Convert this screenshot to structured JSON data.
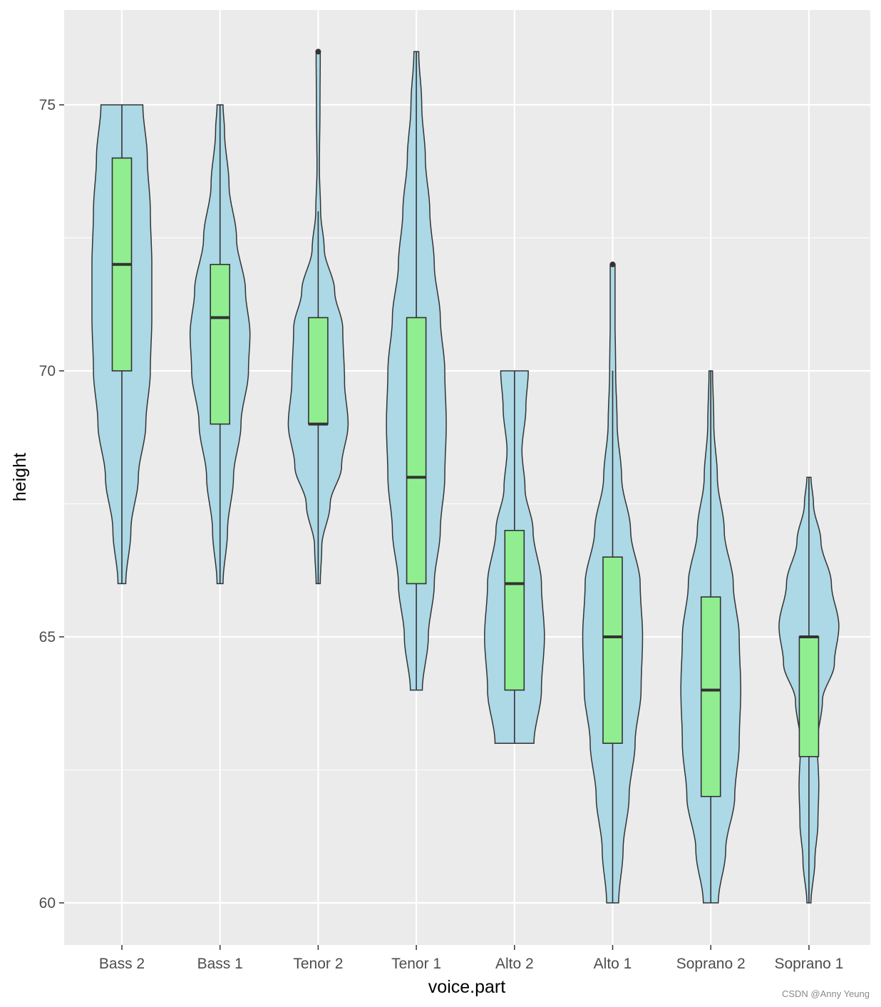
{
  "chart_data": {
    "type": "violin",
    "overlay": "boxplot",
    "title": "",
    "xlabel": "voice.part",
    "ylabel": "height",
    "ylim": [
      59.25,
      76.8
    ],
    "y_ticks": [
      60,
      65,
      70,
      75
    ],
    "y_tick_labels": [
      "60",
      "65",
      "70",
      "75"
    ],
    "grid": true,
    "colors": {
      "panel_bg": "#ebebeb",
      "grid": "#ffffff",
      "violin_fill": "#add8e6",
      "box_fill": "#90ee90",
      "outline": "#333333"
    },
    "categories": [
      "Bass 2",
      "Bass 1",
      "Tenor 2",
      "Tenor 1",
      "Alto 2",
      "Alto 1",
      "Soprano 2",
      "Soprano 1"
    ],
    "groups": [
      {
        "name": "Bass 2",
        "min": 66,
        "max": 75,
        "box": {
          "q1": 70,
          "median": 72,
          "q3": 74,
          "whisker_low": 66,
          "whisker_high": 75
        },
        "outliers": [],
        "density": [
          [
            66,
            0.13
          ],
          [
            67,
            0.3
          ],
          [
            68,
            0.55
          ],
          [
            69,
            0.8
          ],
          [
            70,
            0.95
          ],
          [
            71,
            1.0
          ],
          [
            72,
            1.0
          ],
          [
            73,
            0.95
          ],
          [
            74,
            0.85
          ],
          [
            75,
            0.7
          ]
        ]
      },
      {
        "name": "Bass 1",
        "min": 66,
        "max": 75,
        "box": {
          "q1": 69,
          "median": 71,
          "q3": 72,
          "whisker_low": 66,
          "whisker_high": 75
        },
        "outliers": [],
        "density": [
          [
            66,
            0.1
          ],
          [
            67,
            0.25
          ],
          [
            68,
            0.45
          ],
          [
            69,
            0.7
          ],
          [
            70,
            0.95
          ],
          [
            70.7,
            1.0
          ],
          [
            71.5,
            0.85
          ],
          [
            72.5,
            0.55
          ],
          [
            73.5,
            0.3
          ],
          [
            74.5,
            0.15
          ],
          [
            75,
            0.1
          ]
        ]
      },
      {
        "name": "Tenor 2",
        "min": 66,
        "max": 76,
        "box": {
          "q1": 69,
          "median": 69,
          "q3": 71,
          "whisker_low": 66,
          "whisker_high": 73
        },
        "outliers": [
          76
        ],
        "density": [
          [
            66,
            0.07
          ],
          [
            66.7,
            0.12
          ],
          [
            67.5,
            0.4
          ],
          [
            68.2,
            0.78
          ],
          [
            69,
            1.0
          ],
          [
            69.8,
            0.88
          ],
          [
            70.8,
            0.82
          ],
          [
            71.5,
            0.55
          ],
          [
            72.3,
            0.2
          ],
          [
            73,
            0.08
          ],
          [
            73.8,
            0.04
          ],
          [
            75,
            0.06
          ],
          [
            76,
            0.07
          ]
        ]
      },
      {
        "name": "Tenor 1",
        "min": 64,
        "max": 76,
        "box": {
          "q1": 66,
          "median": 68,
          "q3": 71,
          "whisker_low": 64,
          "whisker_high": 76
        },
        "outliers": [],
        "density": [
          [
            64,
            0.2
          ],
          [
            65,
            0.4
          ],
          [
            66,
            0.6
          ],
          [
            67,
            0.8
          ],
          [
            68,
            0.95
          ],
          [
            69,
            1.0
          ],
          [
            70,
            0.95
          ],
          [
            71,
            0.8
          ],
          [
            72,
            0.6
          ],
          [
            73,
            0.45
          ],
          [
            74,
            0.3
          ],
          [
            75,
            0.18
          ],
          [
            76,
            0.08
          ]
        ]
      },
      {
        "name": "Alto 2",
        "min": 63,
        "max": 70,
        "box": {
          "q1": 64,
          "median": 66,
          "q3": 67,
          "whisker_low": 63,
          "whisker_high": 70
        },
        "outliers": [],
        "density": [
          [
            63,
            0.65
          ],
          [
            64,
            0.9
          ],
          [
            65,
            1.0
          ],
          [
            66,
            0.9
          ],
          [
            67,
            0.62
          ],
          [
            67.8,
            0.35
          ],
          [
            68.5,
            0.25
          ],
          [
            69.3,
            0.38
          ],
          [
            70,
            0.46
          ]
        ]
      },
      {
        "name": "Alto 1",
        "min": 60,
        "max": 72,
        "box": {
          "q1": 63,
          "median": 65,
          "q3": 66.5,
          "whisker_low": 60,
          "whisker_high": 70
        },
        "outliers": [
          72
        ],
        "density": [
          [
            60,
            0.2
          ],
          [
            61,
            0.35
          ],
          [
            62,
            0.55
          ],
          [
            63,
            0.75
          ],
          [
            64,
            0.95
          ],
          [
            65,
            1.0
          ],
          [
            66,
            0.92
          ],
          [
            67,
            0.6
          ],
          [
            68,
            0.3
          ],
          [
            69,
            0.15
          ],
          [
            70,
            0.1
          ],
          [
            71,
            0.08
          ],
          [
            72,
            0.08
          ]
        ]
      },
      {
        "name": "Soprano 2",
        "min": 60,
        "max": 70,
        "box": {
          "q1": 62,
          "median": 64,
          "q3": 65.75,
          "whisker_low": 60,
          "whisker_high": 70
        },
        "outliers": [],
        "density": [
          [
            60,
            0.25
          ],
          [
            61,
            0.5
          ],
          [
            62,
            0.8
          ],
          [
            63,
            0.95
          ],
          [
            64,
            1.0
          ],
          [
            65,
            0.95
          ],
          [
            66,
            0.75
          ],
          [
            67,
            0.45
          ],
          [
            68,
            0.22
          ],
          [
            69,
            0.1
          ],
          [
            70,
            0.06
          ]
        ]
      },
      {
        "name": "Soprano 1",
        "min": 60,
        "max": 68,
        "box": {
          "q1": 62.75,
          "median": 65,
          "q3": 65,
          "whisker_low": 60,
          "whisker_high": 68
        },
        "outliers": [],
        "density": [
          [
            60,
            0.07
          ],
          [
            60.8,
            0.2
          ],
          [
            61.5,
            0.3
          ],
          [
            62.2,
            0.33
          ],
          [
            63,
            0.28
          ],
          [
            63.8,
            0.45
          ],
          [
            64.5,
            0.85
          ],
          [
            65.2,
            1.0
          ],
          [
            66,
            0.75
          ],
          [
            66.8,
            0.4
          ],
          [
            67.5,
            0.15
          ],
          [
            68,
            0.07
          ]
        ]
      }
    ],
    "watermark": "CSDN @Anny Yeung"
  }
}
